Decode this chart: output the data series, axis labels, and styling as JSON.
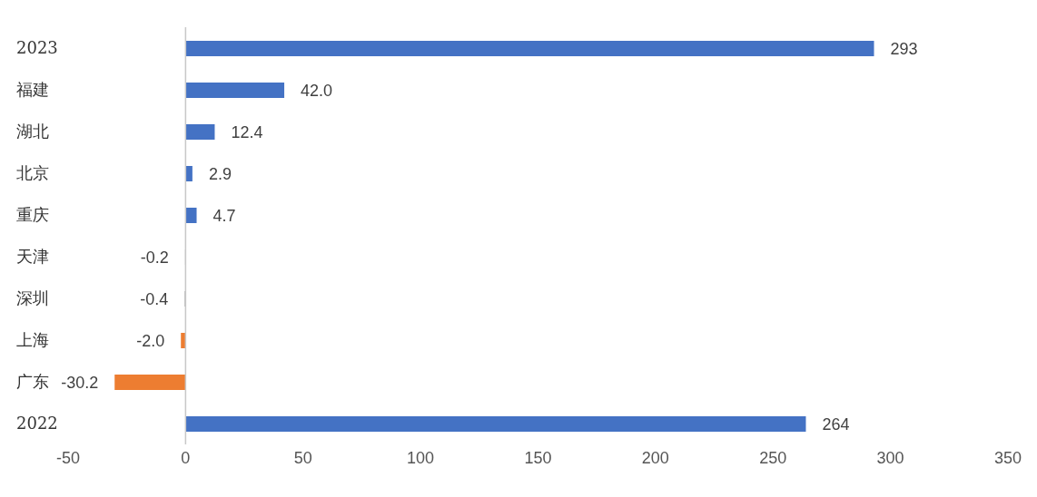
{
  "chart_data": {
    "type": "bar",
    "orientation": "horizontal",
    "categories": [
      "2023",
      "福建",
      "湖北",
      "北京",
      "重庆",
      "天津",
      "深圳",
      "上海",
      "广东",
      "2022"
    ],
    "values": [
      293,
      42.0,
      12.4,
      2.9,
      4.7,
      -0.2,
      -0.4,
      -2.0,
      -30.2,
      264
    ],
    "value_labels": [
      "293",
      "42.0",
      "12.4",
      "2.9",
      "4.7",
      "-0.2",
      "-0.4",
      "-2.0",
      "-30.2",
      "264"
    ],
    "colors": [
      "#4472c4",
      "#4472c4",
      "#4472c4",
      "#4472c4",
      "#4472c4",
      "#a5a5a5",
      "#a5a5a5",
      "#ed7d31",
      "#ed7d31",
      "#4472c4"
    ],
    "xlim": [
      -50,
      350
    ],
    "xticks": [
      -50,
      0,
      50,
      100,
      150,
      200,
      250,
      300,
      350
    ],
    "legend": false
  }
}
